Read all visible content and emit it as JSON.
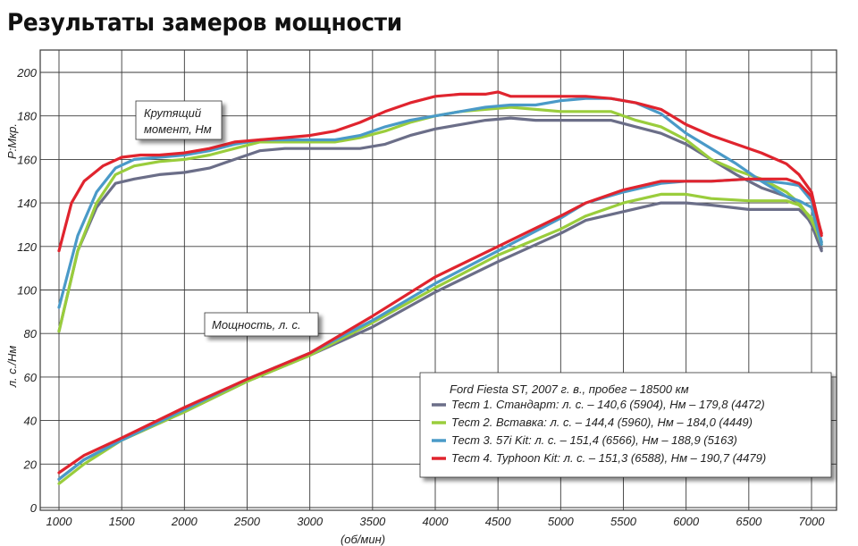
{
  "title": "Результаты замеров мощности",
  "colors": {
    "grid": "#3a3a3a",
    "series": [
      "#6b6e88",
      "#9acd3c",
      "#4a9ac8",
      "#e0242e"
    ]
  },
  "annotations": {
    "torque_label": [
      "Крутящий",
      "момент, Нм"
    ],
    "power_label": "Мощность, л. с."
  },
  "legend": {
    "title": "Ford Fiesta ST, 2007 г. в., пробег – 18500 км",
    "entries": [
      "Тест 1. Стандарт: л. с. – 140,6 (5904), Нм – 179,8 (4472)",
      "Тест 2. Вставка:  л. с. – 144,4 (5960), Нм – 184,0 (4449)",
      "Тест 3. 57i Kit:  л. с. – 151,4 (6566), Нм – 188,9 (5163)",
      "Тест 4. Typhoon Kit:  л. с. – 151,3 (6588), Нм – 190,7 (4479)"
    ]
  },
  "chart_data": {
    "type": "line",
    "xlabel": "(об/мин)",
    "ylabel_top": "P:Мкр.",
    "ylabel_bottom": "л. с./Нм",
    "xlim": [
      1000,
      7000
    ],
    "ylim": [
      0,
      200
    ],
    "xticks": [
      1000,
      1500,
      2000,
      2500,
      3000,
      3500,
      4000,
      4500,
      5000,
      5500,
      6000,
      6500,
      7000
    ],
    "yticks": [
      0,
      20,
      40,
      60,
      80,
      100,
      120,
      140,
      160,
      180,
      200
    ],
    "grid": true,
    "legend_position": "bottom-right",
    "series": [
      {
        "name": "Тест 1. Стандарт",
        "torque": {
          "x": [
            1000,
            1150,
            1300,
            1450,
            1600,
            1800,
            2000,
            2200,
            2400,
            2600,
            2800,
            3000,
            3200,
            3400,
            3600,
            3800,
            4000,
            4200,
            4400,
            4600,
            4800,
            5000,
            5200,
            5400,
            5600,
            5800,
            6000,
            6200,
            6400,
            6600,
            6800,
            6900,
            7000,
            7080
          ],
          "y": [
            81,
            118,
            138,
            149,
            151,
            153,
            154,
            156,
            160,
            164,
            165,
            165,
            165,
            165,
            167,
            171,
            174,
            176,
            178,
            179,
            178,
            178,
            178,
            178,
            175,
            172,
            167,
            160,
            153,
            147,
            143,
            140,
            130,
            118
          ]
        },
        "power": {
          "x": [
            1000,
            1200,
            1500,
            2000,
            2500,
            3000,
            3500,
            4000,
            4500,
            5000,
            5200,
            5500,
            5800,
            6000,
            6200,
            6500,
            6800,
            6900,
            7000,
            7080
          ],
          "y": [
            13,
            22,
            31,
            44,
            58,
            70,
            83,
            99,
            113,
            126,
            132,
            136,
            140,
            140,
            139,
            137,
            137,
            137,
            131,
            119
          ]
        }
      },
      {
        "name": "Тест 2. Вставка",
        "torque": {
          "x": [
            1000,
            1150,
            1300,
            1450,
            1600,
            1800,
            2000,
            2200,
            2400,
            2600,
            2800,
            3000,
            3200,
            3400,
            3600,
            3800,
            4000,
            4200,
            4400,
            4600,
            4800,
            5000,
            5200,
            5400,
            5600,
            5800,
            6000,
            6200,
            6400,
            6600,
            6800,
            6900,
            7000,
            7080
          ],
          "y": [
            81,
            118,
            140,
            153,
            157,
            159,
            160,
            162,
            165,
            168,
            168,
            168,
            168,
            170,
            173,
            177,
            180,
            182,
            183,
            184,
            183,
            182,
            182,
            182,
            178,
            175,
            169,
            160,
            155,
            151,
            145,
            140,
            132,
            122
          ]
        },
        "power": {
          "x": [
            1000,
            1200,
            1500,
            2000,
            2500,
            3000,
            3500,
            4000,
            4500,
            5000,
            5200,
            5500,
            5800,
            6000,
            6200,
            6500,
            6800,
            6900,
            7000,
            7080
          ],
          "y": [
            11,
            20,
            31,
            44,
            58,
            70,
            85,
            101,
            116,
            128,
            134,
            140,
            144,
            144,
            142,
            141,
            141,
            139,
            133,
            121
          ]
        }
      },
      {
        "name": "Тест 3. 57i Kit",
        "torque": {
          "x": [
            1000,
            1150,
            1300,
            1450,
            1600,
            1800,
            2000,
            2200,
            2400,
            2600,
            2800,
            3000,
            3200,
            3400,
            3600,
            3800,
            4000,
            4200,
            4400,
            4600,
            4800,
            5000,
            5200,
            5400,
            5600,
            5800,
            6000,
            6200,
            6400,
            6600,
            6800,
            6900,
            7000,
            7080
          ],
          "y": [
            92,
            125,
            145,
            156,
            160,
            161,
            162,
            164,
            167,
            169,
            169,
            169,
            169,
            171,
            175,
            178,
            180,
            182,
            184,
            185,
            185,
            187,
            188,
            188,
            186,
            181,
            172,
            165,
            158,
            150,
            143,
            141,
            138,
            121
          ]
        },
        "power": {
          "x": [
            1000,
            1200,
            1500,
            2000,
            2500,
            3000,
            3500,
            4000,
            4500,
            5000,
            5200,
            5500,
            5800,
            6000,
            6200,
            6500,
            6800,
            6900,
            7000,
            7080
          ],
          "y": [
            13,
            22,
            31,
            45,
            59,
            71,
            86,
            103,
            118,
            133,
            140,
            145,
            149,
            150,
            150,
            151,
            149,
            148,
            141,
            122
          ]
        }
      },
      {
        "name": "Тест 4. Typhoon Kit",
        "torque": {
          "x": [
            1000,
            1100,
            1200,
            1350,
            1500,
            1650,
            1800,
            2000,
            2200,
            2400,
            2600,
            2800,
            3000,
            3200,
            3400,
            3600,
            3800,
            4000,
            4200,
            4400,
            4500,
            4600,
            4800,
            5000,
            5200,
            5400,
            5600,
            5800,
            6000,
            6200,
            6400,
            6600,
            6800,
            6900,
            7000,
            7080
          ],
          "y": [
            118,
            140,
            150,
            157,
            161,
            162,
            162,
            163,
            165,
            168,
            169,
            170,
            171,
            173,
            177,
            182,
            186,
            189,
            190,
            190,
            191,
            189,
            189,
            189,
            189,
            188,
            186,
            183,
            176,
            171,
            167,
            163,
            158,
            153,
            145,
            125
          ]
        },
        "power": {
          "x": [
            1000,
            1200,
            1500,
            2000,
            2500,
            3000,
            3500,
            4000,
            4500,
            5000,
            5200,
            5500,
            5800,
            6000,
            6200,
            6500,
            6800,
            6900,
            7000,
            7080
          ],
          "y": [
            16,
            24,
            32,
            46,
            59,
            71,
            88,
            106,
            120,
            134,
            140,
            146,
            150,
            150,
            150,
            151,
            151,
            149,
            143,
            126
          ]
        }
      }
    ]
  }
}
